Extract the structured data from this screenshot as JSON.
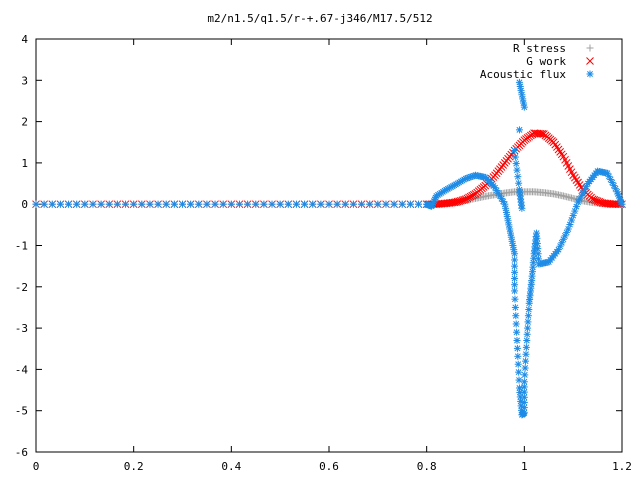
{
  "chart_data": {
    "type": "scatter",
    "title": "m2/n1.5/q1.5/r-+.67-j346/M17.5/512",
    "xlabel": "",
    "ylabel": "",
    "xlim": [
      0,
      1.2
    ],
    "ylim": [
      -6,
      4
    ],
    "x_ticks": [
      "0",
      "0.2",
      "0.4",
      "0.6",
      "0.8",
      "1",
      "1.2"
    ],
    "y_ticks": [
      "4",
      "3",
      "2",
      "1",
      "0",
      "-1",
      "-2",
      "-3",
      "-4",
      "-5",
      "-6"
    ],
    "grid": false,
    "legend_position": "top-right",
    "series": [
      {
        "name": "R stress",
        "color": "#a0a0a0",
        "marker": "plus",
        "points": [
          [
            0.0,
            0
          ],
          [
            0.1,
            0
          ],
          [
            0.2,
            0
          ],
          [
            0.3,
            0
          ],
          [
            0.4,
            0
          ],
          [
            0.5,
            0
          ],
          [
            0.6,
            0
          ],
          [
            0.7,
            0
          ],
          [
            0.8,
            0
          ],
          [
            0.82,
            0.0
          ],
          [
            0.84,
            0.02
          ],
          [
            0.86,
            0.05
          ],
          [
            0.88,
            0.09
          ],
          [
            0.9,
            0.14
          ],
          [
            0.92,
            0.19
          ],
          [
            0.94,
            0.23
          ],
          [
            0.96,
            0.27
          ],
          [
            0.98,
            0.3
          ],
          [
            1.0,
            0.3
          ],
          [
            1.02,
            0.3
          ],
          [
            1.04,
            0.28
          ],
          [
            1.06,
            0.25
          ],
          [
            1.08,
            0.2
          ],
          [
            1.1,
            0.14
          ],
          [
            1.12,
            0.08
          ],
          [
            1.14,
            0.04
          ],
          [
            1.16,
            0.02
          ],
          [
            1.18,
            0.01
          ],
          [
            1.2,
            0.0
          ]
        ]
      },
      {
        "name": "G work",
        "color": "#ff0000",
        "marker": "cross",
        "points": [
          [
            0.0,
            0
          ],
          [
            0.1,
            0
          ],
          [
            0.2,
            0
          ],
          [
            0.3,
            0
          ],
          [
            0.4,
            0
          ],
          [
            0.5,
            0
          ],
          [
            0.6,
            0
          ],
          [
            0.7,
            0
          ],
          [
            0.8,
            0
          ],
          [
            0.82,
            0.0
          ],
          [
            0.84,
            0.02
          ],
          [
            0.86,
            0.05
          ],
          [
            0.88,
            0.12
          ],
          [
            0.9,
            0.25
          ],
          [
            0.92,
            0.45
          ],
          [
            0.94,
            0.7
          ],
          [
            0.96,
            1.0
          ],
          [
            0.98,
            1.3
          ],
          [
            1.0,
            1.55
          ],
          [
            1.02,
            1.72
          ],
          [
            1.04,
            1.7
          ],
          [
            1.06,
            1.5
          ],
          [
            1.08,
            1.15
          ],
          [
            1.1,
            0.7
          ],
          [
            1.12,
            0.35
          ],
          [
            1.14,
            0.12
          ],
          [
            1.16,
            0.03
          ],
          [
            1.18,
            0.0
          ],
          [
            1.2,
            0.0
          ]
        ]
      },
      {
        "name": "Acoustic flux",
        "color": "#1e8ce6",
        "marker": "star",
        "points": [
          [
            0.0,
            0
          ],
          [
            0.1,
            0
          ],
          [
            0.2,
            0
          ],
          [
            0.3,
            0
          ],
          [
            0.4,
            0
          ],
          [
            0.5,
            0
          ],
          [
            0.6,
            0
          ],
          [
            0.7,
            0
          ],
          [
            0.8,
            0
          ],
          [
            0.81,
            -0.05
          ],
          [
            0.82,
            0.2
          ],
          [
            0.84,
            0.35
          ],
          [
            0.86,
            0.48
          ],
          [
            0.88,
            0.62
          ],
          [
            0.9,
            0.7
          ],
          [
            0.92,
            0.65
          ],
          [
            0.94,
            0.4
          ],
          [
            0.96,
            0.0
          ],
          [
            0.97,
            -0.6
          ],
          [
            0.98,
            -1.2
          ],
          [
            0.98,
            -2.1
          ],
          [
            0.985,
            -3.3
          ],
          [
            0.99,
            -4.45
          ],
          [
            0.995,
            -5.1
          ],
          [
            1.0,
            -5.05
          ],
          [
            1.0,
            -4.3
          ],
          [
            1.005,
            -3.3
          ],
          [
            1.01,
            -2.4
          ],
          [
            1.015,
            -1.85
          ],
          [
            1.02,
            -1.2
          ],
          [
            1.025,
            -0.7
          ],
          [
            1.03,
            -1.45
          ],
          [
            1.05,
            -1.4
          ],
          [
            1.07,
            -1.1
          ],
          [
            1.09,
            -0.6
          ],
          [
            1.11,
            0.05
          ],
          [
            1.13,
            0.5
          ],
          [
            1.15,
            0.8
          ],
          [
            1.17,
            0.75
          ],
          [
            1.19,
            0.3
          ],
          [
            1.2,
            0.0
          ],
          [
            0.99,
            2.95
          ],
          [
            1.0,
            2.35
          ],
          [
            0.99,
            1.8
          ],
          [
            0.98,
            1.3
          ],
          [
            0.99,
            0.35
          ],
          [
            0.995,
            -0.1
          ]
        ]
      }
    ]
  }
}
